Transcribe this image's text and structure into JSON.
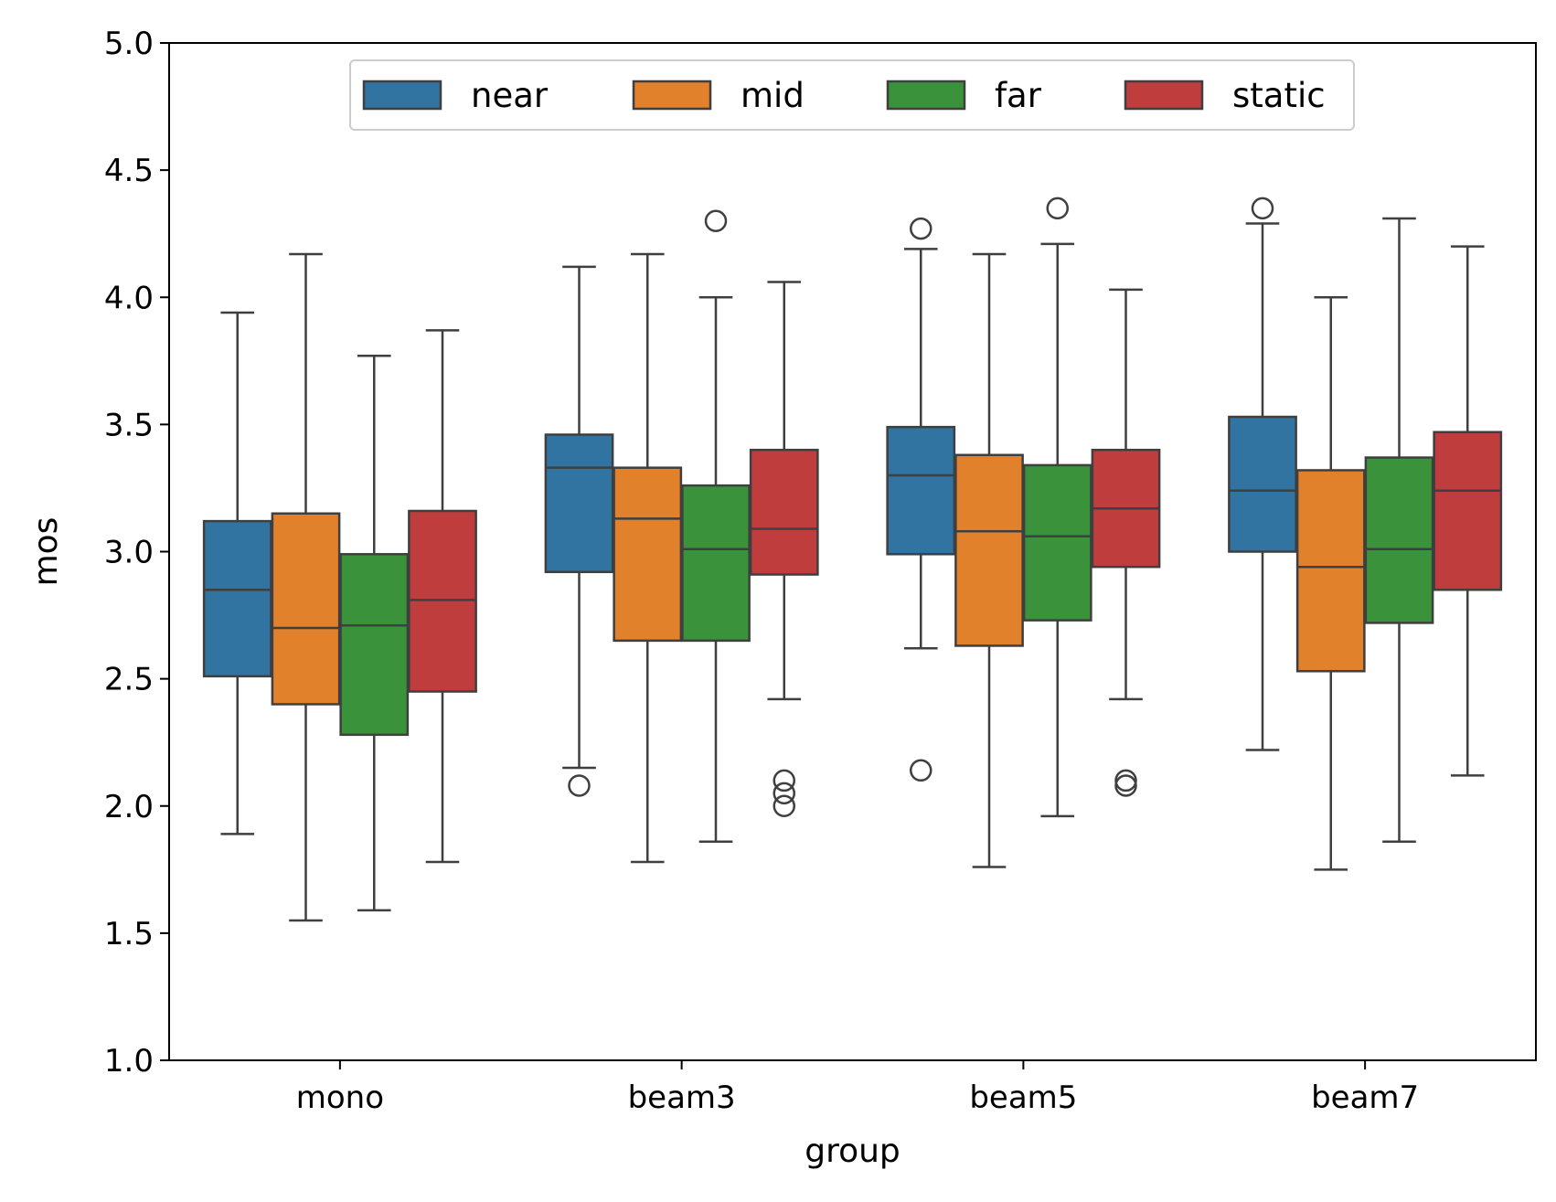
{
  "chart_data": {
    "type": "box",
    "title": "",
    "xlabel": "group",
    "ylabel": "mos",
    "ylim": [
      1.0,
      5.0
    ],
    "yticks": [
      "1.0",
      "1.5",
      "2.0",
      "2.5",
      "3.0",
      "3.5",
      "4.0",
      "4.5",
      "5.0"
    ],
    "categories": [
      "mono",
      "beam3",
      "beam5",
      "beam7"
    ],
    "grid": false,
    "legend_position": "top-center",
    "series": [
      {
        "name": "near",
        "color": "#3274a1",
        "boxes": [
          {
            "whislo": 1.89,
            "q1": 2.51,
            "med": 2.85,
            "q3": 3.12,
            "whishi": 3.94,
            "fliers": []
          },
          {
            "whislo": 2.15,
            "q1": 2.92,
            "med": 3.33,
            "q3": 3.46,
            "whishi": 4.12,
            "fliers": [
              2.08
            ]
          },
          {
            "whislo": 2.62,
            "q1": 2.99,
            "med": 3.3,
            "q3": 3.49,
            "whishi": 4.19,
            "fliers": [
              4.27,
              2.14
            ]
          },
          {
            "whislo": 2.22,
            "q1": 3.0,
            "med": 3.24,
            "q3": 3.53,
            "whishi": 4.29,
            "fliers": [
              4.35
            ]
          }
        ]
      },
      {
        "name": "mid",
        "color": "#e1812c",
        "boxes": [
          {
            "whislo": 1.55,
            "q1": 2.4,
            "med": 2.7,
            "q3": 3.15,
            "whishi": 4.17,
            "fliers": []
          },
          {
            "whislo": 1.78,
            "q1": 2.65,
            "med": 3.13,
            "q3": 3.33,
            "whishi": 4.17,
            "fliers": []
          },
          {
            "whislo": 1.76,
            "q1": 2.63,
            "med": 3.08,
            "q3": 3.38,
            "whishi": 4.17,
            "fliers": []
          },
          {
            "whislo": 1.75,
            "q1": 2.53,
            "med": 2.94,
            "q3": 3.32,
            "whishi": 4.0,
            "fliers": []
          }
        ]
      },
      {
        "name": "far",
        "color": "#3a923a",
        "boxes": [
          {
            "whislo": 1.59,
            "q1": 2.28,
            "med": 2.71,
            "q3": 2.99,
            "whishi": 3.77,
            "fliers": []
          },
          {
            "whislo": 1.86,
            "q1": 2.65,
            "med": 3.01,
            "q3": 3.26,
            "whishi": 4.0,
            "fliers": [
              4.3
            ]
          },
          {
            "whislo": 1.96,
            "q1": 2.73,
            "med": 3.06,
            "q3": 3.34,
            "whishi": 4.21,
            "fliers": [
              4.35
            ]
          },
          {
            "whislo": 1.86,
            "q1": 2.72,
            "med": 3.01,
            "q3": 3.37,
            "whishi": 4.31,
            "fliers": []
          }
        ]
      },
      {
        "name": "static",
        "color": "#c03d3e",
        "boxes": [
          {
            "whislo": 1.78,
            "q1": 2.45,
            "med": 2.81,
            "q3": 3.16,
            "whishi": 3.87,
            "fliers": []
          },
          {
            "whislo": 2.42,
            "q1": 2.91,
            "med": 3.09,
            "q3": 3.4,
            "whishi": 4.06,
            "fliers": [
              2.1,
              2.05,
              2.0
            ]
          },
          {
            "whislo": 2.42,
            "q1": 2.94,
            "med": 3.17,
            "q3": 3.4,
            "whishi": 4.03,
            "fliers": [
              2.1,
              2.08
            ]
          },
          {
            "whislo": 2.12,
            "q1": 2.85,
            "med": 3.24,
            "q3": 3.47,
            "whishi": 4.2,
            "fliers": []
          }
        ]
      }
    ]
  }
}
